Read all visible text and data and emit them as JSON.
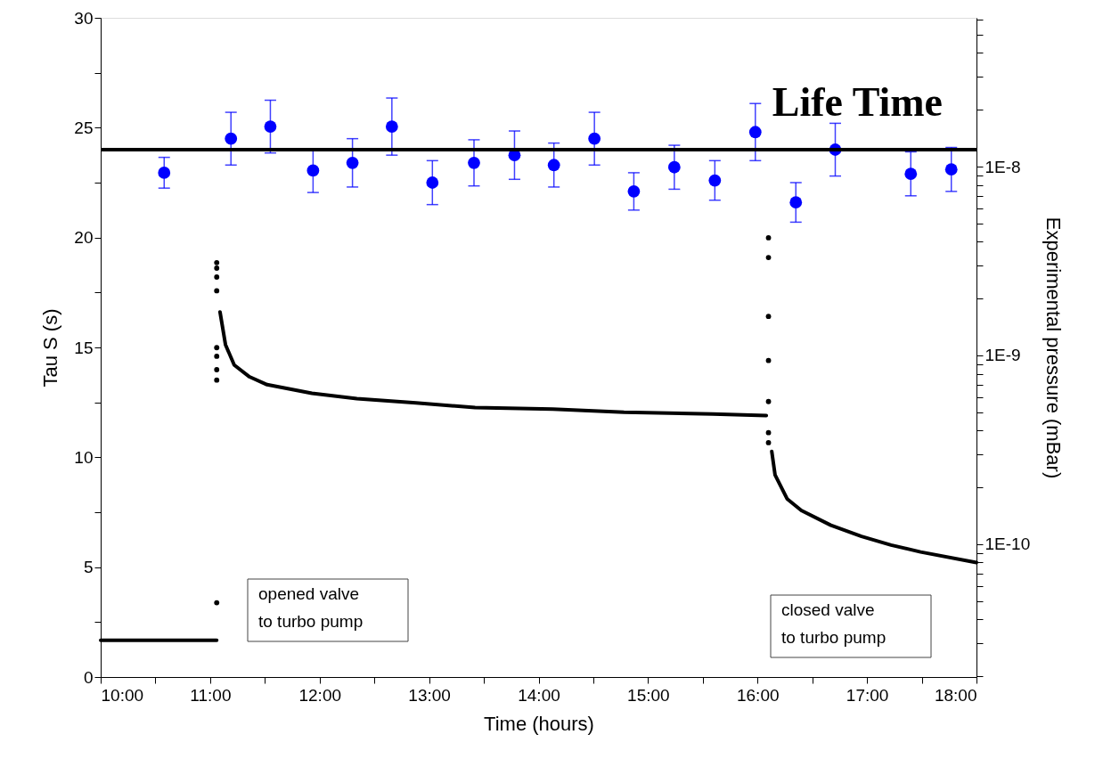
{
  "chart_data": {
    "type": "scatter",
    "xlabel": "Time (hours)",
    "ylabel": "Tau S (s)",
    "y2label": "Experimental pressure (mBar)",
    "xlim": [
      10,
      18
    ],
    "xticks": [
      {
        "value": 10,
        "label": "10:00"
      },
      {
        "value": 10.5,
        "label": null
      },
      {
        "value": 11,
        "label": "11:00"
      },
      {
        "value": 11.5,
        "label": null
      },
      {
        "value": 12,
        "label": "12:00"
      },
      {
        "value": 12.5,
        "label": null
      },
      {
        "value": 13,
        "label": "13:00"
      },
      {
        "value": 13.5,
        "label": null
      },
      {
        "value": 14,
        "label": "14:00"
      },
      {
        "value": 14.5,
        "label": null
      },
      {
        "value": 15,
        "label": "15:00"
      },
      {
        "value": 15.5,
        "label": null
      },
      {
        "value": 16,
        "label": "16:00"
      },
      {
        "value": 16.5,
        "label": null
      },
      {
        "value": 17,
        "label": "17:00"
      },
      {
        "value": 17.5,
        "label": null
      },
      {
        "value": 18,
        "label": "18:00"
      }
    ],
    "ylim": [
      0,
      30
    ],
    "yticks": [
      0,
      {
        "value": 2.5,
        "label": null
      },
      5,
      {
        "value": 7.5,
        "label": null
      },
      10,
      {
        "value": 12.5,
        "label": null
      },
      15,
      {
        "value": 17.5,
        "label": null
      },
      20,
      {
        "value": 22.5,
        "label": null
      },
      25,
      {
        "value": 27.5,
        "label": null
      },
      30
    ],
    "y2lim": [
      1.98e-11,
      6.14e-08
    ],
    "y2ticks": [
      {
        "value": 2e-11,
        "label": null
      },
      {
        "value": 3e-11,
        "label": null
      },
      {
        "value": 4e-11,
        "label": null
      },
      {
        "value": 5e-11,
        "label": null
      },
      {
        "value": 6e-11,
        "label": null
      },
      {
        "value": 7e-11,
        "label": null
      },
      {
        "value": 8e-11,
        "label": null
      },
      {
        "value": 9e-11,
        "label": null
      },
      {
        "value": 1e-10,
        "label": "1E-10"
      },
      {
        "value": 2e-10,
        "label": null
      },
      {
        "value": 3e-10,
        "label": null
      },
      {
        "value": 4e-10,
        "label": null
      },
      {
        "value": 5e-10,
        "label": null
      },
      {
        "value": 6e-10,
        "label": null
      },
      {
        "value": 7e-10,
        "label": null
      },
      {
        "value": 8e-10,
        "label": null
      },
      {
        "value": 9e-10,
        "label": null
      },
      {
        "value": 1e-09,
        "label": "1E-9"
      },
      {
        "value": 2e-09,
        "label": null
      },
      {
        "value": 3e-09,
        "label": null
      },
      {
        "value": 4e-09,
        "label": null
      },
      {
        "value": 5e-09,
        "label": null
      },
      {
        "value": 6e-09,
        "label": null
      },
      {
        "value": 7e-09,
        "label": null
      },
      {
        "value": 8e-09,
        "label": null
      },
      {
        "value": 9e-09,
        "label": null
      },
      {
        "value": 1e-08,
        "label": "1E-8"
      },
      {
        "value": 2e-08,
        "label": null
      },
      {
        "value": 3e-08,
        "label": null
      },
      {
        "value": 4e-08,
        "label": null
      },
      {
        "value": 5e-08,
        "label": null
      },
      {
        "value": 6e-08,
        "label": null
      }
    ],
    "log": "y2",
    "grid": false,
    "marker": "circle",
    "series": [
      {
        "color": "#0000ff",
        "x": [
          10.58,
          11.19,
          11.55,
          11.94,
          12.3,
          12.66,
          13.03,
          13.41,
          13.78,
          14.14,
          14.51,
          14.87,
          15.24,
          15.61,
          15.98,
          16.35,
          16.71,
          17.4,
          17.77
        ],
        "values": [
          22.95,
          24.5,
          25.05,
          23.05,
          23.4,
          25.05,
          22.5,
          23.4,
          23.75,
          23.3,
          24.5,
          22.1,
          23.2,
          22.6,
          24.8,
          21.6,
          24.0,
          22.9,
          23.1
        ],
        "errors": [
          0.7,
          1.2,
          1.2,
          1.0,
          1.1,
          1.3,
          1.0,
          1.05,
          1.1,
          1.0,
          1.2,
          0.85,
          1.0,
          0.9,
          1.3,
          0.9,
          1.2,
          1.0,
          1.0
        ]
      },
      {
        "type": "line",
        "axis": "y2",
        "color": "#000000",
        "line_style": "solid",
        "marker": "none",
        "x": [
          10.0,
          10.55,
          11.06,
          11.07,
          11.09,
          11.14,
          11.22,
          11.36,
          11.52,
          11.93,
          12.34,
          12.88,
          13.42,
          14.13,
          14.78,
          15.59,
          16.08,
          16.1,
          16.13,
          16.16,
          16.27,
          16.4,
          16.67,
          16.95,
          17.22,
          17.49,
          18.0
        ],
        "values": [
          3.1e-11,
          3.1e-11,
          3.1e-11,
          null,
          1.7e-09,
          1.14e-09,
          8.9e-10,
          7.7e-10,
          7e-10,
          6.3e-10,
          5.9e-10,
          5.6e-10,
          5.3e-10,
          5.2e-10,
          5e-10,
          4.9e-10,
          4.8e-10,
          null,
          3.1e-10,
          2.33e-10,
          1.74e-10,
          1.51e-10,
          1.26e-10,
          1.1e-10,
          9.9e-11,
          9.1e-11,
          8e-11
        ]
      },
      {
        "axis": "y2",
        "color": "#000000",
        "x": [
          11.06,
          11.06,
          11.06,
          11.06,
          11.06,
          11.06,
          11.06,
          11.06,
          11.06,
          16.1,
          16.1,
          16.1,
          16.1,
          16.1,
          16.1,
          16.1
        ],
        "values": [
          3.1e-09,
          2.9e-09,
          2.6e-09,
          2.2e-09,
          1.1e-09,
          9.9e-10,
          8.4e-10,
          7.4e-10,
          4.9e-11,
          4.2e-09,
          3.3e-09,
          1.61e-09,
          9.4e-10,
          5.7e-10,
          3.9e-10,
          3.45e-10
        ]
      }
    ],
    "ref_lines": [
      {
        "axis": "y",
        "value": 24,
        "label": "Life Time",
        "color": "#000000"
      }
    ],
    "annotations": [
      "opened valve\nto turbo pump",
      "closed valve\nto turbo pump"
    ]
  }
}
